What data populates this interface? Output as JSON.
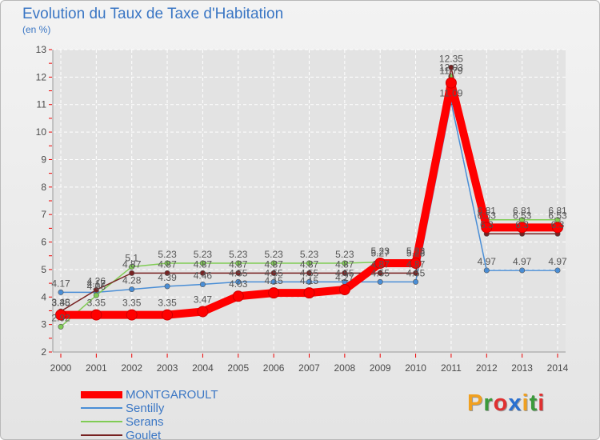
{
  "colors": {
    "axis_text": "#4a4a4a",
    "tick_mark": "#ee0000",
    "title": "#3a76c4",
    "grid": "#ffffff"
  },
  "logo": {
    "letters": [
      "P",
      "r",
      "o",
      "x",
      "i",
      "t",
      "i"
    ],
    "colors": [
      "#f0a020",
      "#3a9a3a",
      "#e03030",
      "#2a70d0",
      "#f0a020",
      "#3a9a3a",
      "#e03030"
    ]
  },
  "chart_data": {
    "type": "line",
    "title": "Evolution du Taux de Taxe d'Habitation",
    "subtitle": "(en %)",
    "xlabel": "",
    "ylabel": "",
    "x": [
      "2000",
      "2001",
      "2002",
      "2003",
      "2004",
      "2005",
      "2006",
      "2007",
      "2008",
      "2009",
      "2010",
      "2011",
      "2012",
      "2013",
      "2014"
    ],
    "yticks": [
      "2",
      "3",
      "4",
      "5",
      "6",
      "7",
      "8",
      "9",
      "10",
      "11",
      "12",
      "13"
    ],
    "ylim": [
      2,
      13
    ],
    "grid": true,
    "legend_position": "bottom-left",
    "series": [
      {
        "name": "MONTGAROULT",
        "color": "#ff0000",
        "values": [
          3.35,
          3.35,
          3.35,
          3.35,
          3.47,
          4.03,
          4.15,
          4.15,
          4.27,
          5.23,
          5.23,
          11.79,
          6.53,
          6.53,
          6.53
        ],
        "labels": [
          "3.35",
          "3.35",
          "3.35",
          "3.35",
          "3.47",
          "4.03",
          "4.15",
          "4.15",
          "4.27",
          "5.23",
          "5.23",
          "11.79",
          "6.53",
          "6.53",
          "6.53"
        ]
      },
      {
        "name": "Sentilly",
        "color": "#4a8ed6",
        "values": [
          4.17,
          4.17,
          4.28,
          4.39,
          4.46,
          4.55,
          4.55,
          4.55,
          4.55,
          4.55,
          4.55,
          11.09,
          4.97,
          4.97,
          4.97
        ],
        "labels": [
          "4.17",
          "4.17",
          "4.28",
          "4.39",
          "4.46",
          "4.55",
          "4.55",
          "4.55",
          "4.55",
          "4.55",
          "4.55",
          "11.09",
          "4.97",
          "4.97",
          "4.97"
        ]
      },
      {
        "name": "Serans",
        "color": "#80cc55",
        "values": [
          2.92,
          4.06,
          5.1,
          5.23,
          5.23,
          5.23,
          5.23,
          5.23,
          5.23,
          5.27,
          5.28,
          12.03,
          6.81,
          6.81,
          6.81
        ],
        "labels": [
          "2.92",
          "4.06",
          "5.1",
          "5.23",
          "5.23",
          "5.23",
          "5.23",
          "5.23",
          "5.23",
          "5.27",
          "5.28",
          "12.03",
          "6.81",
          "6.81",
          "6.81"
        ]
      },
      {
        "name": "Goulet",
        "color": "#772222",
        "values": [
          3.48,
          4.26,
          4.87,
          4.87,
          4.87,
          4.87,
          4.87,
          4.87,
          4.87,
          4.87,
          4.87,
          12.35,
          6.3,
          6.3,
          6.3
        ],
        "labels": [
          "3.48",
          "4.26",
          "4.87",
          "4.87",
          "4.87",
          "4.87",
          "4.87",
          "4.87",
          "4.87",
          "4.87",
          "4.87",
          "12.35",
          "6.3",
          "6.3",
          "6.3"
        ]
      }
    ]
  }
}
